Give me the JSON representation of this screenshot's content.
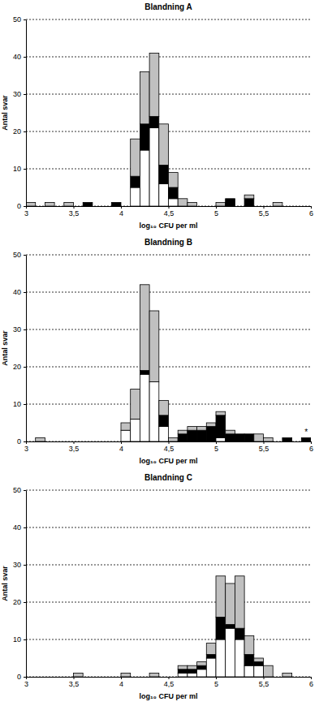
{
  "chart_data": [
    {
      "type": "histogram",
      "title": "Blandning A",
      "x_label": "log₁₀ CFU per ml",
      "y_label": "Antal svar",
      "stacked": true,
      "grid": true,
      "bins": [
        3,
        3.1,
        3.2,
        3.3,
        3.4,
        3.5,
        3.6,
        3.7,
        3.8,
        3.9,
        4,
        4.1,
        4.2,
        4.3,
        4.4,
        4.5,
        4.6,
        4.7,
        4.8,
        4.9,
        5,
        5.1,
        5.2,
        5.3,
        5.4,
        5.5,
        5.6,
        5.7,
        5.8,
        5.9,
        6
      ],
      "series": [
        {
          "color": "#ffffff",
          "values": [
            0,
            0,
            0,
            0,
            0,
            0,
            0,
            0,
            0,
            0,
            0,
            5,
            15,
            21,
            6,
            2,
            0,
            0,
            0,
            0,
            0,
            0,
            0,
            0,
            0,
            0,
            0,
            0,
            0,
            0
          ]
        },
        {
          "color": "#000000",
          "values": [
            0,
            0,
            0,
            0,
            0,
            0,
            1,
            0,
            0,
            1,
            0,
            3,
            7,
            3,
            5,
            3,
            0,
            0,
            0,
            0,
            0,
            2,
            0,
            2,
            0,
            0,
            0,
            0,
            0,
            0
          ]
        },
        {
          "color": "#c0c0c0",
          "values": [
            1,
            0,
            1,
            0,
            1,
            0,
            0,
            0,
            0,
            0,
            0,
            10,
            14,
            17,
            11,
            4,
            2,
            1,
            0,
            0,
            1,
            0,
            0,
            1,
            0,
            0,
            1,
            0,
            0,
            0
          ]
        }
      ],
      "xlim": [
        3,
        6
      ],
      "xticks": [
        3,
        {
          "value": 3.5,
          "label": "3,5"
        },
        4,
        {
          "value": 4.5,
          "label": "4,5"
        },
        5,
        {
          "value": 5.5,
          "label": "5,5"
        },
        6
      ],
      "ylim": [
        0,
        50
      ],
      "yticks": [
        0,
        10,
        20,
        30,
        40,
        50
      ]
    },
    {
      "type": "histogram",
      "title": "Blandning B",
      "x_label": "log₁₀ CFU per ml",
      "y_label": "Antal svar",
      "stacked": true,
      "grid": true,
      "bins": [
        3,
        3.1,
        3.2,
        3.3,
        3.4,
        3.5,
        3.6,
        3.7,
        3.8,
        3.9,
        4,
        4.1,
        4.2,
        4.3,
        4.4,
        4.5,
        4.6,
        4.7,
        4.8,
        4.9,
        5,
        5.1,
        5.2,
        5.3,
        5.4,
        5.5,
        5.6,
        5.7,
        5.8,
        5.9,
        6
      ],
      "series": [
        {
          "color": "#ffffff",
          "values": [
            0,
            0,
            0,
            0,
            0,
            0,
            0,
            0,
            0,
            0,
            3,
            6,
            18,
            16,
            4,
            0,
            0,
            0,
            0,
            0,
            1,
            0,
            0,
            0,
            0,
            0,
            0,
            0,
            0,
            0
          ]
        },
        {
          "color": "#000000",
          "values": [
            0,
            0,
            0,
            0,
            0,
            0,
            0,
            0,
            0,
            0,
            0,
            0,
            1,
            0,
            3,
            0,
            2,
            3,
            3,
            4,
            6,
            2,
            2,
            2,
            0,
            0,
            0,
            1,
            0,
            1
          ]
        },
        {
          "color": "#c0c0c0",
          "values": [
            0,
            1,
            0,
            0,
            0,
            0,
            0,
            0,
            0,
            0,
            2,
            8,
            23,
            19,
            4,
            1,
            1,
            1,
            1,
            1,
            1,
            1,
            0,
            0,
            2,
            1,
            0,
            0,
            0,
            0
          ]
        }
      ],
      "annotations": [
        {
          "text": "*",
          "x": 5.95,
          "y": 1
        }
      ],
      "xlim": [
        3,
        6
      ],
      "xticks": [
        3,
        {
          "value": 3.5,
          "label": "3,5"
        },
        4,
        {
          "value": 4.5,
          "label": "4,5"
        },
        5,
        {
          "value": 5.5,
          "label": "5,5"
        },
        6
      ],
      "ylim": [
        0,
        50
      ],
      "yticks": [
        0,
        10,
        20,
        30,
        40,
        50
      ]
    },
    {
      "type": "histogram",
      "title": "Blandning C",
      "x_label": "log₁₀ CFU per ml",
      "y_label": "Antal svar",
      "stacked": true,
      "grid": true,
      "bins": [
        3,
        3.1,
        3.2,
        3.3,
        3.4,
        3.5,
        3.6,
        3.7,
        3.8,
        3.9,
        4,
        4.1,
        4.2,
        4.3,
        4.4,
        4.5,
        4.6,
        4.7,
        4.8,
        4.9,
        5,
        5.1,
        5.2,
        5.3,
        5.4,
        5.5,
        5.6,
        5.7,
        5.8,
        5.9,
        6
      ],
      "series": [
        {
          "color": "#ffffff",
          "values": [
            0,
            0,
            0,
            0,
            0,
            0,
            0,
            0,
            0,
            0,
            0,
            0,
            0,
            0,
            0,
            0,
            1,
            1,
            2,
            5,
            10,
            13,
            10,
            3,
            3,
            0,
            0,
            0,
            0,
            0
          ]
        },
        {
          "color": "#000000",
          "values": [
            0,
            0,
            0,
            0,
            0,
            0,
            0,
            0,
            0,
            0,
            0,
            0,
            0,
            0,
            0,
            0,
            1,
            1,
            1,
            1,
            6,
            1,
            3,
            3,
            1,
            0,
            0,
            0,
            0,
            0
          ]
        },
        {
          "color": "#c0c0c0",
          "values": [
            0,
            0,
            0,
            0,
            0,
            1,
            0,
            0,
            0,
            0,
            1,
            0,
            0,
            1,
            0,
            0,
            1,
            1,
            1,
            3,
            11,
            11,
            14,
            5,
            1,
            3,
            0,
            1,
            0,
            0
          ]
        }
      ],
      "xlim": [
        3,
        6
      ],
      "xticks": [
        3,
        {
          "value": 3.5,
          "label": "3,5"
        },
        4,
        {
          "value": 4.5,
          "label": "4,5"
        },
        5,
        {
          "value": 5.5,
          "label": "5,5"
        },
        6
      ],
      "ylim": [
        0,
        50
      ],
      "yticks": [
        0,
        10,
        20,
        30,
        40,
        50
      ]
    }
  ]
}
